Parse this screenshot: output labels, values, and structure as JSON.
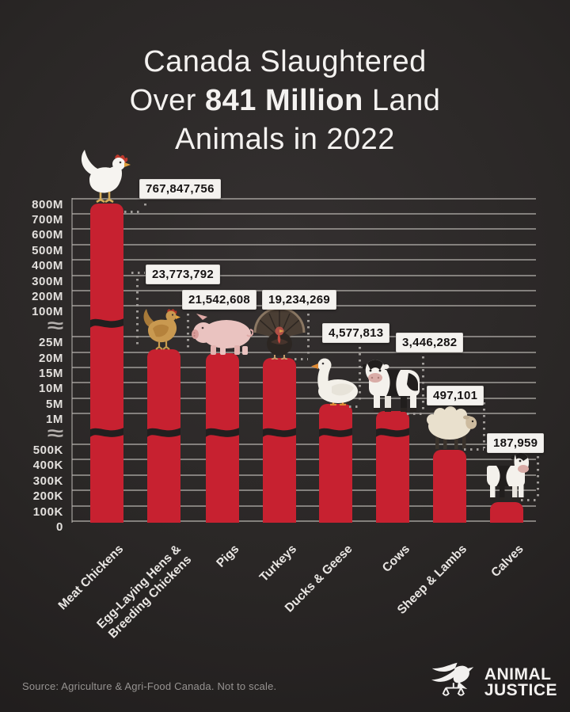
{
  "title": {
    "line1": "Canada Slaughtered",
    "line2_pre": "Over ",
    "line2_bold": "841 Million",
    "line2_post": " Land",
    "line3": "Animals in 2022"
  },
  "chart_data": {
    "type": "bar",
    "title": "Canada Slaughtered Over 841 Million Land Animals in 2022",
    "categories": [
      "Meat Chickens",
      "Egg-Laying Hens & Breeding Chickens",
      "Pigs",
      "Turkeys",
      "Ducks & Geese",
      "Cows",
      "Sheep & Lambs",
      "Calves"
    ],
    "values": [
      767847756,
      23773792,
      21542608,
      19234269,
      4577813,
      3446282,
      497101,
      187959
    ],
    "value_labels": [
      "767,847,756",
      "23,773,792",
      "21,542,608",
      "19,234,269",
      "4,577,813",
      "3,446,282",
      "497,101",
      "187,959"
    ],
    "animal_icons": [
      "meat-chicken",
      "egg-hen",
      "pig",
      "turkey",
      "duck",
      "cow",
      "sheep",
      "calf"
    ],
    "y_ticks": [
      "0",
      "100K",
      "200K",
      "300K",
      "400K",
      "500K",
      "≈",
      "1M",
      "5M",
      "10M",
      "15M",
      "20M",
      "25M",
      "≈",
      "100M",
      "200M",
      "300M",
      "400M",
      "500M",
      "600M",
      "700M",
      "800M"
    ],
    "axis_break_symbol": "≈",
    "bar_color": "#c72130",
    "grid": true,
    "legend": "none",
    "not_to_scale": true
  },
  "footer": {
    "source": "Source: Agriculture & Agri-Food Canada. Not to scale."
  },
  "logo": {
    "line1": "ANIMAL",
    "line2": "JUSTICE"
  }
}
